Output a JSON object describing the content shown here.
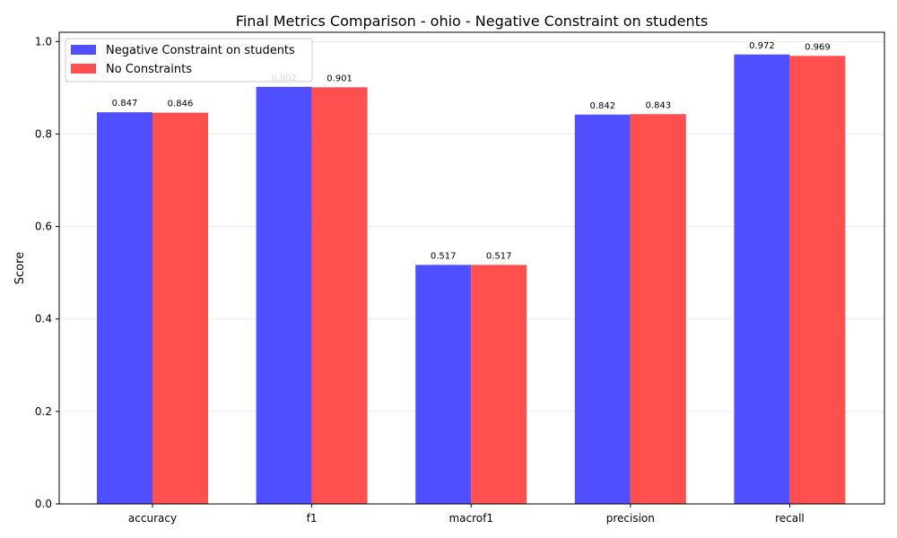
{
  "chart_data": {
    "type": "bar",
    "title": "Final Metrics Comparison - ohio - Negative Constraint on students",
    "xlabel": "",
    "ylabel": "Score",
    "ylim": [
      0,
      1.02
    ],
    "yticks": [
      "0.0",
      "0.2",
      "0.4",
      "0.6",
      "0.8",
      "1.0"
    ],
    "grid": "y",
    "legend_position": "top-left",
    "categories": [
      "accuracy",
      "f1",
      "macrof1",
      "precision",
      "recall"
    ],
    "series": [
      {
        "name": "Negative Constraint on students",
        "color": "#4b4bff",
        "values": [
          0.847,
          0.902,
          0.517,
          0.842,
          0.972
        ],
        "labels": [
          "0.847",
          "0.902",
          "0.517",
          "0.842",
          "0.972"
        ]
      },
      {
        "name": "No Constraints",
        "color": "#ff4b4b",
        "values": [
          0.846,
          0.901,
          0.517,
          0.843,
          0.969
        ],
        "labels": [
          "0.846",
          "0.901",
          "0.517",
          "0.843",
          "0.969"
        ]
      }
    ]
  }
}
